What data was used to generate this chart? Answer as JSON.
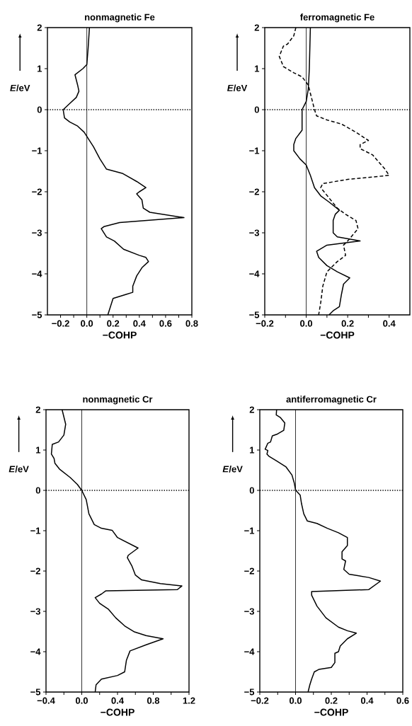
{
  "chart_data": [
    {
      "type": "line",
      "title": "nonmagnetic Fe",
      "xlabel": "−COHP",
      "ylabel": "*E*/eV",
      "marker": "none",
      "xlim": [
        -0.3,
        0.8
      ],
      "xticks": [
        {
          "value": -0.2,
          "label": "−0.2"
        },
        {
          "value": -0.1,
          "label": null
        },
        {
          "value": 0,
          "label": "0.0"
        },
        {
          "value": 0.1,
          "label": null
        },
        {
          "value": 0.2,
          "label": "0.2"
        },
        {
          "value": 0.3,
          "label": null
        },
        {
          "value": 0.4,
          "label": "0.4"
        },
        {
          "value": 0.5,
          "label": null
        },
        {
          "value": 0.6,
          "label": "0.6"
        },
        {
          "value": 0.7,
          "label": null
        },
        {
          "value": 0.8,
          "label": "0.8"
        }
      ],
      "ylim": [
        -5,
        2
      ],
      "yticks": [
        {
          "value": -5,
          "label": "−5"
        },
        {
          "value": -4,
          "label": "−4"
        },
        {
          "value": -3,
          "label": "−3"
        },
        {
          "value": -2,
          "label": "−2"
        },
        {
          "value": -1,
          "label": "−1"
        },
        0,
        1,
        2
      ],
      "ref_lines": [
        {
          "axis": "y",
          "value": 0,
          "line_style": "dotted"
        },
        {
          "axis": "x",
          "value": 0,
          "line_style": "solid"
        }
      ],
      "series": [
        {
          "color": "#000000",
          "line_style": "solid",
          "x": [
            0.02,
            0.01,
            0.0,
            -0.03,
            -0.09,
            -0.07,
            -0.06,
            -0.08,
            -0.13,
            -0.18,
            -0.17,
            -0.13,
            -0.07,
            -0.02,
            0.01,
            0.05,
            0.1,
            0.15,
            0.27,
            0.38,
            0.45,
            0.4,
            0.38,
            0.42,
            0.43,
            0.48,
            0.74,
            0.25,
            0.13,
            0.11,
            0.15,
            0.21,
            0.28,
            0.4,
            0.45,
            0.47,
            0.42,
            0.38,
            0.35,
            0.35,
            0.3,
            0.2,
            0.16
          ],
          "values": [
            2,
            1.5,
            1.1,
            1.0,
            0.85,
            0.6,
            0.45,
            0.3,
            0.15,
            0.0,
            -0.2,
            -0.3,
            -0.4,
            -0.55,
            -0.7,
            -0.9,
            -1.2,
            -1.45,
            -1.55,
            -1.75,
            -1.9,
            -2.0,
            -2.05,
            -2.2,
            -2.4,
            -2.5,
            -2.63,
            -2.75,
            -2.85,
            -2.9,
            -3.1,
            -3.2,
            -3.4,
            -3.55,
            -3.6,
            -3.7,
            -3.85,
            -4.05,
            -4.3,
            -4.45,
            -4.5,
            -4.6,
            -5.0
          ]
        }
      ]
    },
    {
      "type": "line",
      "title": "ferromagnetic Fe",
      "xlabel": "−COHP",
      "ylabel": "*E*/eV",
      "marker": "none",
      "xlim": [
        -0.2,
        0.5
      ],
      "xticks": [
        {
          "value": -0.2,
          "label": "−0.2"
        },
        {
          "value": -0.1,
          "label": null
        },
        {
          "value": 0,
          "label": "0.0"
        },
        {
          "value": 0.1,
          "label": null
        },
        {
          "value": 0.2,
          "label": "0.2"
        },
        {
          "value": 0.3,
          "label": null
        },
        {
          "value": 0.4,
          "label": "0.4"
        }
      ],
      "ylim": [
        -5,
        2
      ],
      "yticks": [
        {
          "value": -5,
          "label": "−5"
        },
        {
          "value": -4,
          "label": "−4"
        },
        {
          "value": -3,
          "label": "−3"
        },
        {
          "value": -2,
          "label": "−2"
        },
        {
          "value": -1,
          "label": "−1"
        },
        0,
        1,
        2
      ],
      "ref_lines": [
        {
          "axis": "y",
          "value": 0,
          "line_style": "dotted"
        },
        {
          "axis": "x",
          "value": 0,
          "line_style": "solid"
        }
      ],
      "series": [
        {
          "color": "#000000",
          "line_style": "solid",
          "x": [
            0.02,
            0.015,
            0.01,
            0.0,
            -0.02,
            -0.02,
            -0.05,
            -0.06,
            -0.06,
            -0.03,
            0.0,
            0.02,
            0.04,
            0.07,
            0.11,
            0.16,
            0.14,
            0.13,
            0.13,
            0.15,
            0.26,
            0.1,
            0.05,
            0.06,
            0.1,
            0.15,
            0.21,
            0.18,
            0.17,
            0.16,
            0.13,
            0.11
          ],
          "values": [
            2,
            1.0,
            0.5,
            0.2,
            0.0,
            -0.5,
            -0.7,
            -0.85,
            -1.0,
            -1.2,
            -1.35,
            -1.6,
            -1.9,
            -2.1,
            -2.25,
            -2.45,
            -2.55,
            -2.7,
            -3.0,
            -3.1,
            -3.2,
            -3.3,
            -3.45,
            -3.6,
            -3.8,
            -3.95,
            -4.1,
            -4.25,
            -4.5,
            -4.8,
            -4.9,
            -5.0
          ]
        },
        {
          "color": "#000000",
          "line_style": "dashed",
          "x": [
            -0.05,
            -0.06,
            -0.09,
            -0.11,
            -0.13,
            -0.11,
            -0.06,
            -0.02,
            0.01,
            0.02,
            0.03,
            0.04,
            0.05,
            0.1,
            0.17,
            0.24,
            0.3,
            0.26,
            0.26,
            0.32,
            0.38,
            0.4,
            0.2,
            0.08,
            0.07,
            0.11,
            0.15,
            0.19,
            0.24,
            0.25,
            0.2,
            0.18,
            0.19,
            0.15,
            0.1,
            0.08,
            0.07,
            0.06
          ],
          "values": [
            2,
            1.8,
            1.6,
            1.55,
            1.3,
            1.05,
            0.9,
            0.8,
            0.6,
            0.4,
            0.2,
            0.0,
            -0.15,
            -0.25,
            -0.35,
            -0.55,
            -0.75,
            -0.85,
            -0.95,
            -1.1,
            -1.45,
            -1.6,
            -1.7,
            -1.8,
            -1.9,
            -2.15,
            -2.4,
            -2.55,
            -2.7,
            -2.9,
            -3.2,
            -3.3,
            -3.55,
            -3.7,
            -3.95,
            -4.3,
            -4.7,
            -5.0
          ]
        }
      ]
    },
    {
      "type": "line",
      "title": "nonmagnetic Cr",
      "xlabel": "−COHP",
      "ylabel": "*E*/eV",
      "marker": "none",
      "xlim": [
        -0.4,
        1.2
      ],
      "xticks": [
        {
          "value": -0.4,
          "label": "−0.4"
        },
        {
          "value": -0.2,
          "label": null
        },
        {
          "value": 0,
          "label": "0.0"
        },
        {
          "value": 0.2,
          "label": null
        },
        {
          "value": 0.4,
          "label": "0.4"
        },
        {
          "value": 0.6,
          "label": null
        },
        {
          "value": 0.8,
          "label": "0.8"
        },
        {
          "value": 1.0,
          "label": null
        },
        {
          "value": 1.2,
          "label": "1.2"
        }
      ],
      "ylim": [
        -5,
        2
      ],
      "yticks": [
        {
          "value": -5,
          "label": "−5"
        },
        {
          "value": -4,
          "label": "−4"
        },
        {
          "value": -3,
          "label": "−3"
        },
        {
          "value": -2,
          "label": "−2"
        },
        {
          "value": -1,
          "label": "−1"
        },
        0,
        1,
        2
      ],
      "ref_lines": [
        {
          "axis": "y",
          "value": 0,
          "line_style": "dotted"
        },
        {
          "axis": "x",
          "value": 0,
          "line_style": "solid"
        }
      ],
      "series": [
        {
          "color": "#000000",
          "line_style": "solid",
          "x": [
            -0.22,
            -0.18,
            -0.2,
            -0.26,
            -0.33,
            -0.34,
            -0.31,
            -0.3,
            -0.25,
            -0.13,
            -0.05,
            0.0,
            0.05,
            0.08,
            0.14,
            0.22,
            0.34,
            0.4,
            0.63,
            0.52,
            0.51,
            0.56,
            0.6,
            0.67,
            0.88,
            1.12,
            1.07,
            0.27,
            0.22,
            0.15,
            0.2,
            0.3,
            0.38,
            0.48,
            0.59,
            0.72,
            0.91,
            0.72,
            0.54,
            0.5,
            0.48,
            0.4,
            0.22,
            0.16,
            0.15
          ],
          "values": [
            2.0,
            1.64,
            1.37,
            1.2,
            1.14,
            0.9,
            0.79,
            0.67,
            0.53,
            0.32,
            0.15,
            0.0,
            -0.23,
            -0.58,
            -0.85,
            -0.94,
            -0.99,
            -1.17,
            -1.43,
            -1.61,
            -1.67,
            -1.87,
            -2.1,
            -2.22,
            -2.31,
            -2.37,
            -2.46,
            -2.49,
            -2.57,
            -2.66,
            -2.8,
            -2.95,
            -3.16,
            -3.36,
            -3.51,
            -3.6,
            -3.68,
            -3.83,
            -3.98,
            -4.21,
            -4.5,
            -4.59,
            -4.68,
            -4.82,
            -5.0
          ]
        }
      ]
    },
    {
      "type": "line",
      "title": "antiferromagnetic Cr",
      "xlabel": "−COHP",
      "ylabel": "*E*/eV",
      "marker": "none",
      "xlim": [
        -0.2,
        0.6
      ],
      "xticks": [
        {
          "value": -0.2,
          "label": "−0.2"
        },
        {
          "value": -0.1,
          "label": null
        },
        {
          "value": 0,
          "label": "0.0"
        },
        {
          "value": 0.1,
          "label": null
        },
        {
          "value": 0.2,
          "label": "0.2"
        },
        {
          "value": 0.3,
          "label": null
        },
        {
          "value": 0.4,
          "label": "0.4"
        },
        {
          "value": 0.5,
          "label": null
        },
        {
          "value": 0.6,
          "label": "0.6"
        }
      ],
      "ylim": [
        -5,
        2
      ],
      "yticks": [
        {
          "value": -5,
          "label": "−5"
        },
        {
          "value": -4,
          "label": "−4"
        },
        {
          "value": -3,
          "label": "−3"
        },
        {
          "value": -2,
          "label": "−2"
        },
        {
          "value": -1,
          "label": "−1"
        },
        0,
        1,
        2
      ],
      "ref_lines": [
        {
          "axis": "y",
          "value": 0,
          "line_style": "dotted"
        },
        {
          "axis": "x",
          "value": 0,
          "line_style": "solid"
        }
      ],
      "series": [
        {
          "color": "#000000",
          "line_style": "solid",
          "x": [
            -0.106,
            -0.108,
            -0.086,
            -0.06,
            -0.066,
            -0.1,
            -0.13,
            -0.14,
            -0.155,
            -0.17,
            -0.155,
            -0.16,
            -0.15,
            -0.106,
            -0.053,
            -0.02,
            -0.007,
            0.0,
            0.026,
            0.033,
            0.046,
            0.066,
            0.12,
            0.178,
            0.24,
            0.29,
            0.29,
            0.26,
            0.26,
            0.28,
            0.27,
            0.3,
            0.41,
            0.475,
            0.41,
            0.09,
            0.09,
            0.12,
            0.17,
            0.24,
            0.29,
            0.34,
            0.29,
            0.25,
            0.24,
            0.22,
            0.22,
            0.2,
            0.13,
            0.105,
            0.09,
            0.08,
            0.07
          ],
          "values": [
            2.0,
            1.87,
            1.81,
            1.67,
            1.49,
            1.4,
            1.35,
            1.2,
            1.17,
            1.02,
            0.99,
            0.9,
            0.85,
            0.73,
            0.58,
            0.38,
            0.18,
            0.01,
            -0.12,
            -0.32,
            -0.58,
            -0.76,
            -0.82,
            -0.94,
            -1.05,
            -1.17,
            -1.37,
            -1.52,
            -1.7,
            -1.75,
            -1.96,
            -2.08,
            -2.16,
            -2.25,
            -2.46,
            -2.51,
            -2.6,
            -2.87,
            -3.16,
            -3.39,
            -3.48,
            -3.54,
            -3.68,
            -3.86,
            -4.0,
            -4.04,
            -4.27,
            -4.39,
            -4.44,
            -4.5,
            -4.68,
            -4.82,
            -5.0
          ]
        }
      ]
    }
  ]
}
